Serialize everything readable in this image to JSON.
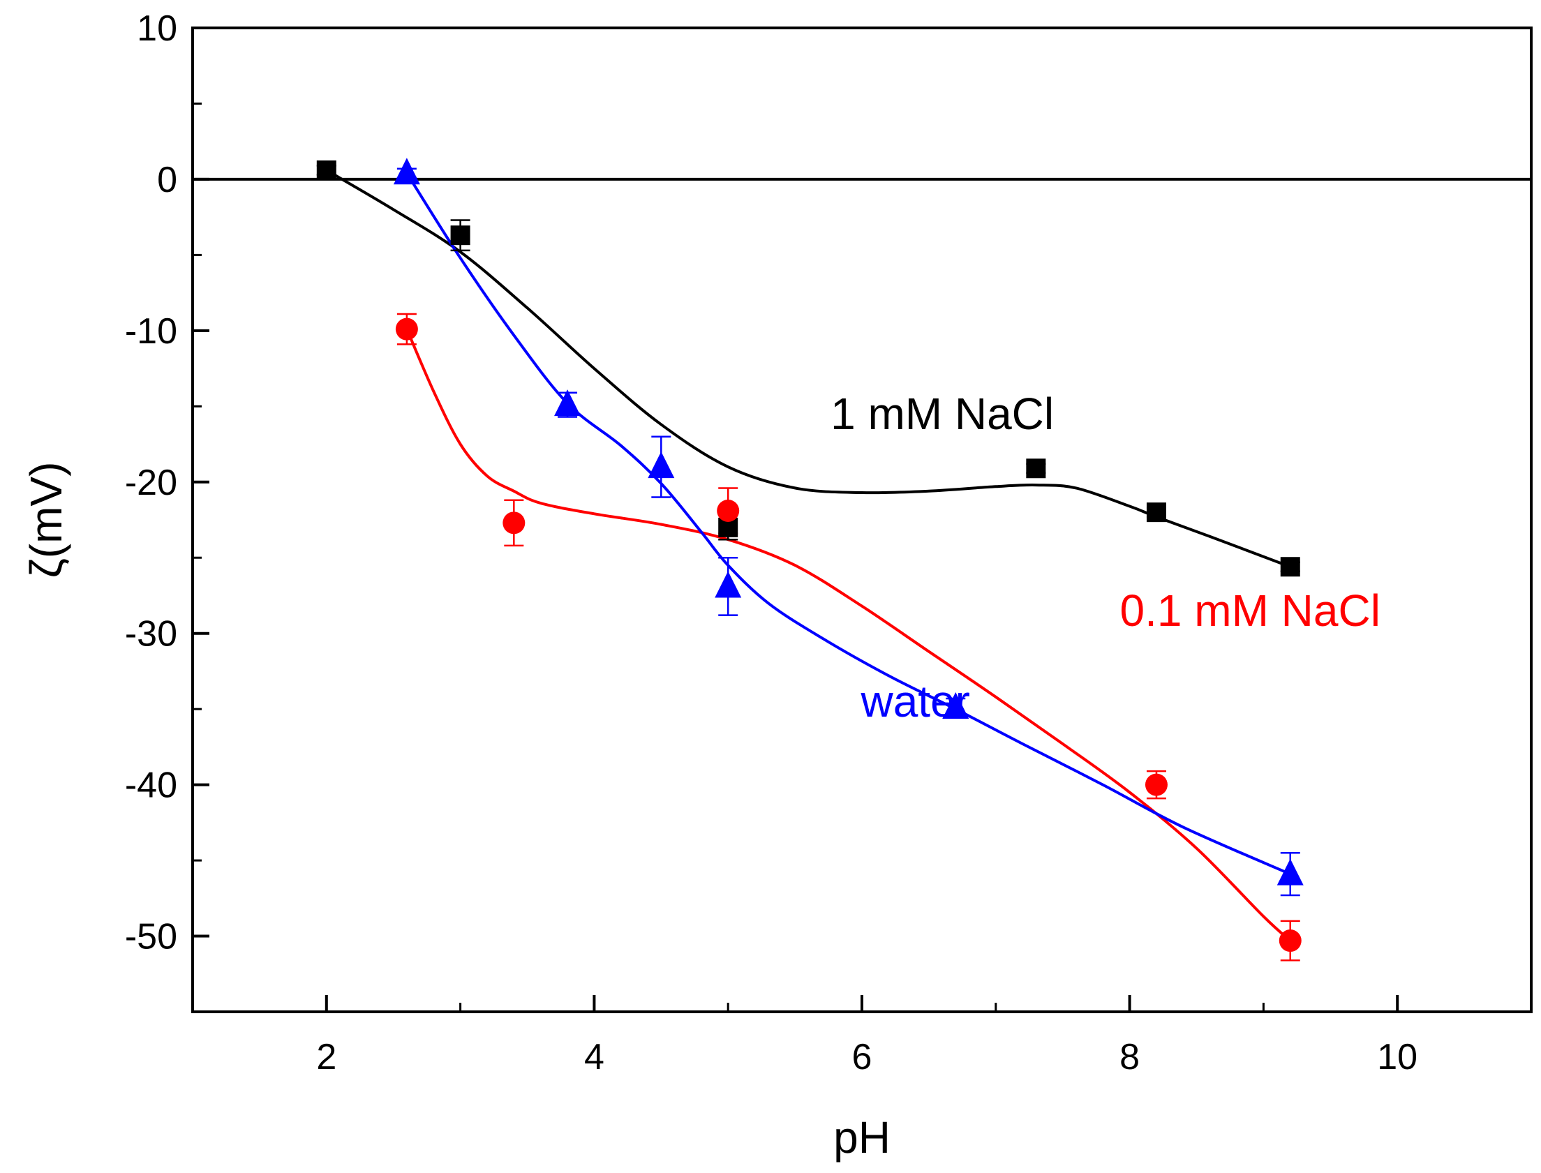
{
  "chart_data": {
    "type": "scatter",
    "title": "",
    "xlabel": "pH",
    "ylabel": "ζ(mV)",
    "xlim": [
      1,
      11
    ],
    "ylim": [
      -55,
      10
    ],
    "x_ticks": [
      2,
      4,
      6,
      8,
      10
    ],
    "y_ticks": [
      10,
      0,
      -10,
      -20,
      -30,
      -40,
      -50
    ],
    "x_tick_labels": [
      "2",
      "4",
      "6",
      "8",
      "10"
    ],
    "y_tick_labels": [
      "10",
      "0",
      "-10",
      "-20",
      "-30",
      "-40",
      "-50"
    ],
    "reference_line_y": 0,
    "grid": false,
    "series": [
      {
        "label": "1 mM NaCl",
        "color": "#000000",
        "marker": "square",
        "x": [
          2.0,
          3.0,
          5.0,
          7.3,
          8.2,
          9.2
        ],
        "y": [
          0.6,
          -3.7,
          -23.0,
          -19.1,
          -22.0,
          -25.6
        ],
        "err": [
          0.3,
          1.0,
          0.8,
          0.3,
          0.3,
          0.3
        ],
        "curve_x": [
          2.0,
          2.5,
          3.0,
          3.5,
          4.0,
          4.5,
          5.0,
          5.5,
          6.0,
          6.5,
          7.0,
          7.3,
          7.6,
          8.0,
          8.2,
          8.6,
          9.2
        ],
        "curve_y": [
          0.6,
          -2.0,
          -4.8,
          -8.5,
          -12.5,
          -16.2,
          -19.0,
          -20.4,
          -20.7,
          -20.6,
          -20.3,
          -20.2,
          -20.4,
          -21.6,
          -22.3,
          -23.6,
          -25.6
        ]
      },
      {
        "label": "0.1 mM NaCl",
        "color": "#ff0000",
        "marker": "circle",
        "x": [
          2.6,
          3.4,
          5.0,
          8.2,
          9.2
        ],
        "y": [
          -9.9,
          -22.7,
          -21.9,
          -40.0,
          -50.3
        ],
        "err": [
          1.0,
          1.5,
          1.5,
          0.9,
          1.3
        ],
        "curve_x": [
          2.6,
          2.8,
          3.0,
          3.2,
          3.4,
          3.6,
          4.0,
          4.5,
          5.0,
          5.5,
          6.0,
          6.5,
          7.0,
          7.5,
          8.0,
          8.5,
          9.0,
          9.2
        ],
        "curve_y": [
          -9.9,
          -14.0,
          -17.5,
          -19.6,
          -20.6,
          -21.4,
          -22.1,
          -22.8,
          -23.8,
          -25.5,
          -28.2,
          -31.2,
          -34.2,
          -37.3,
          -40.5,
          -44.2,
          -48.7,
          -50.3
        ]
      },
      {
        "label": "water",
        "color": "#0000ff",
        "marker": "triangle",
        "x": [
          2.6,
          3.8,
          4.5,
          5.0,
          6.7,
          9.2
        ],
        "y": [
          0.4,
          -14.9,
          -19.0,
          -26.9,
          -34.9,
          -45.9
        ],
        "err": [
          0.3,
          0.8,
          2.0,
          1.9,
          0.6,
          1.4
        ],
        "curve_x": [
          2.6,
          3.0,
          3.4,
          3.8,
          4.2,
          4.5,
          4.8,
          5.0,
          5.3,
          5.7,
          6.2,
          6.7,
          7.2,
          7.8,
          8.4,
          9.2
        ],
        "curve_y": [
          0.4,
          -5.2,
          -10.3,
          -14.8,
          -17.6,
          -20.1,
          -23.3,
          -25.5,
          -28.0,
          -30.3,
          -32.8,
          -35.0,
          -37.3,
          -40.0,
          -42.8,
          -45.9
        ]
      }
    ],
    "annotations": [
      {
        "text": "1 mM NaCl",
        "color": "#000000",
        "x": 6.6,
        "y": -16.5
      },
      {
        "text": "0.1 mM NaCl",
        "color": "#ff0000",
        "x": 8.9,
        "y": -29.5
      },
      {
        "text": "water",
        "color": "#0000ff",
        "x": 6.4,
        "y": -35.5
      }
    ]
  }
}
